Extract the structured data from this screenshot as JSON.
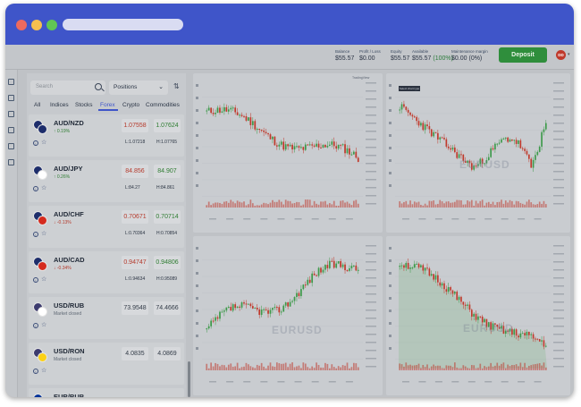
{
  "topbar": {
    "balance": {
      "label": "Balance",
      "value": "$55.57"
    },
    "profit_loss": {
      "label": "Profit / Loss",
      "value": "$0.00"
    },
    "equity": {
      "label": "Equity",
      "value": "$55.57"
    },
    "available": {
      "label": "Available",
      "value": "$55.57",
      "pct": "(100%)"
    },
    "maintenance": {
      "label": "Maintenance margin",
      "value": "$0.00",
      "pct": "(0%)"
    },
    "deposit_label": "Deposit",
    "avatar_initials": "DD"
  },
  "watchlist": {
    "search_placeholder": "Search",
    "positions_label": "Positions",
    "tabs": [
      "All",
      "Indices",
      "Stocks",
      "Forex",
      "Crypto",
      "Commodities"
    ],
    "active_tab": "Forex",
    "instruments": [
      {
        "pair": "AUD/NZD",
        "change": "0.19%",
        "direction": "up",
        "sell": "1.07558",
        "buy": "1.07624",
        "low": "L:1.07218",
        "high": "H:1.07765",
        "flag_colors": [
          "#1d2d6b",
          "#1d2d6b"
        ]
      },
      {
        "pair": "AUD/JPY",
        "change": "0.26%",
        "direction": "up",
        "sell": "84.856",
        "buy": "84.907",
        "low": "L:84.27",
        "high": "H:84.861",
        "flag_colors": [
          "#1d2d6b",
          "#ffffff"
        ]
      },
      {
        "pair": "AUD/CHF",
        "change": "-0.13%",
        "direction": "down",
        "sell": "0.70671",
        "buy": "0.70714",
        "low": "L:0.70364",
        "high": "H:0.70854",
        "flag_colors": [
          "#1d2d6b",
          "#d52b1e"
        ]
      },
      {
        "pair": "AUD/CAD",
        "change": "-0.34%",
        "direction": "down",
        "sell": "0.94747",
        "buy": "0.94806",
        "low": "L:0.94634",
        "high": "H:0.95089",
        "flag_colors": [
          "#1d2d6b",
          "#d52b1e"
        ]
      },
      {
        "pair": "USD/RUB",
        "status": "Market closed",
        "sell": "73.9548",
        "buy": "74.4666",
        "flag_colors": [
          "#3c3b6e",
          "#ffffff"
        ]
      },
      {
        "pair": "USD/RON",
        "status": "Market closed",
        "sell": "4.0835",
        "buy": "4.0869",
        "flag_colors": [
          "#3c3b6e",
          "#fcd116"
        ]
      },
      {
        "pair": "EUR/RUB",
        "flag_colors": [
          "#003399",
          "#ffffff"
        ]
      }
    ]
  },
  "charts": {
    "watermark": "EURUSD",
    "tooltip_text": "Select chart type",
    "logo_text": "TradingView",
    "up_color": "#3d9a4a",
    "down_color": "#c0392b"
  },
  "colors": {
    "brand": "#3f55c9",
    "deposit": "#2f8e3c"
  }
}
